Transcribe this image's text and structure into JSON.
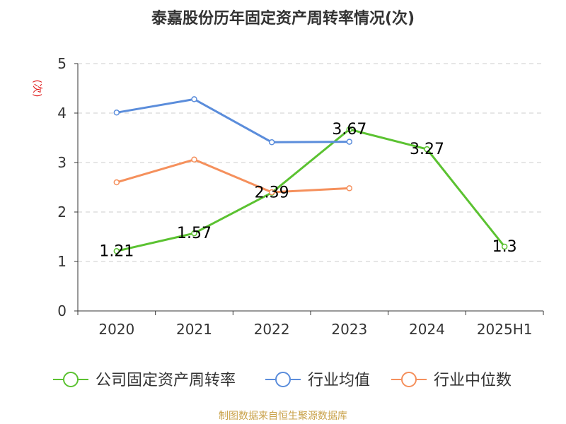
{
  "chart_data": {
    "type": "line",
    "title": "泰嘉股份历年固定资产周转率情况(次)",
    "ylabel": "(次)",
    "categories": [
      "2020",
      "2021",
      "2022",
      "2023",
      "2024",
      "2025H1"
    ],
    "ylim": [
      0,
      5
    ],
    "yticks": [
      "0",
      "1",
      "2",
      "3",
      "4",
      "5"
    ],
    "grid": true,
    "legend_position": "bottom",
    "series": [
      {
        "name": "公司固定资产周转率",
        "color": "#5bc231",
        "values": [
          1.21,
          1.57,
          2.39,
          3.67,
          3.27,
          1.3
        ],
        "labels": [
          "1.21",
          "1.57",
          "2.39",
          "3.67",
          "3.27",
          "1.3"
        ]
      },
      {
        "name": "行业均值",
        "color": "#5b8ddb",
        "values": [
          4.01,
          4.28,
          3.41,
          3.42,
          null,
          null
        ],
        "labels": null
      },
      {
        "name": "行业中位数",
        "color": "#f5905c",
        "values": [
          2.6,
          3.06,
          2.4,
          2.48,
          null,
          null
        ],
        "labels": null
      }
    ]
  },
  "footer": {
    "source": "制图数据来自恒生聚源数据库"
  },
  "colors": {
    "axis": "#333333",
    "grid": "#cccccc",
    "ylabel": "#e02020",
    "source": "#c9a24a"
  }
}
